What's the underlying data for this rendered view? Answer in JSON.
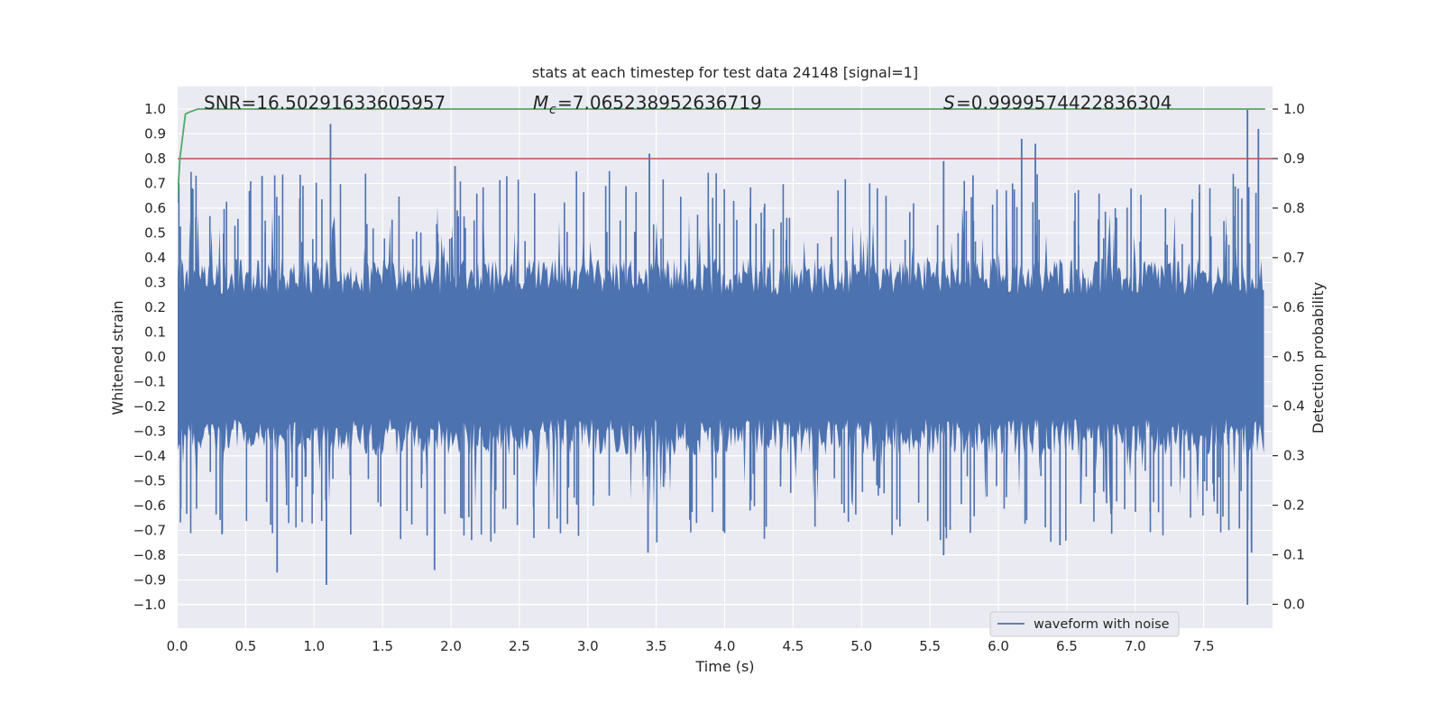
{
  "chart_data": {
    "type": "line",
    "title": "stats at each timestep for test data 24148 [signal=1]",
    "xlabel": "Time (s)",
    "ylabel_left": "Whitened strain",
    "ylabel_right": "Detection probability",
    "xlim": [
      0,
      8
    ],
    "ylim_left": [
      -1.1,
      1.1
    ],
    "ylim_right": [
      -0.05,
      1.05
    ],
    "x_ticks": [
      0.0,
      0.5,
      1.0,
      1.5,
      2.0,
      2.5,
      3.0,
      3.5,
      4.0,
      4.5,
      5.0,
      5.5,
      6.0,
      6.5,
      7.0,
      7.5
    ],
    "x_tick_labels": [
      "0.0",
      "0.5",
      "1.0",
      "1.5",
      "2.0",
      "2.5",
      "3.0",
      "3.5",
      "4.0",
      "4.5",
      "5.0",
      "5.5",
      "6.0",
      "6.5",
      "7.0",
      "7.5"
    ],
    "y_ticks_left": [
      1.0,
      0.9,
      0.8,
      0.7,
      0.6,
      0.5,
      0.4,
      0.3,
      0.2,
      0.1,
      0.0,
      -0.1,
      -0.2,
      -0.3,
      -0.4,
      -0.5,
      -0.6,
      -0.7,
      -0.8,
      -0.9,
      -1.0
    ],
    "y_tick_labels_left": [
      "1.0",
      "0.9",
      "0.8",
      "0.7",
      "0.6",
      "0.5",
      "0.4",
      "0.3",
      "0.2",
      "0.1",
      "0.0",
      "−0.1",
      "−0.2",
      "−0.3",
      "−0.4",
      "−0.5",
      "−0.6",
      "−0.7",
      "−0.8",
      "−0.9",
      "−1.0"
    ],
    "y_ticks_right": [
      1.0,
      0.9,
      0.8,
      0.7,
      0.6,
      0.5,
      0.4,
      0.3,
      0.2,
      0.1,
      0.0
    ],
    "y_tick_labels_right": [
      "1.0",
      "0.9",
      "0.8",
      "0.7",
      "0.6",
      "0.5",
      "0.4",
      "0.3",
      "0.2",
      "0.1",
      "0.0"
    ],
    "grid": true,
    "annotations": {
      "snr": "SNR=16.50291633605957",
      "mc_value": "=7.065238952636719",
      "s_value": "=0.9999574422836304"
    },
    "threshold_right": 0.9,
    "series": [
      {
        "name": "waveform with noise",
        "axis": "left",
        "color": "#4c72b0",
        "description": "dense noisy strain, about ±0.4 envelope with spikes",
        "duration": 7.95,
        "peaks_pos": [
          [
            1.12,
            0.94
          ],
          [
            3.45,
            0.82
          ],
          [
            6.17,
            0.88
          ],
          [
            6.27,
            0.86
          ],
          [
            7.82,
            1.0
          ],
          [
            7.9,
            0.92
          ],
          [
            0.62,
            0.73
          ],
          [
            2.03,
            0.77
          ],
          [
            5.6,
            0.79
          ]
        ],
        "peaks_neg": [
          [
            0.73,
            -0.87
          ],
          [
            1.09,
            -0.92
          ],
          [
            1.88,
            -0.86
          ],
          [
            3.44,
            -0.79
          ],
          [
            5.6,
            -0.8
          ],
          [
            6.45,
            -0.76
          ],
          [
            7.82,
            -1.0
          ],
          [
            7.85,
            -0.79
          ]
        ]
      },
      {
        "name": "detection probability",
        "axis": "right",
        "color": "#55a868",
        "x": [
          0.0,
          0.02,
          0.06,
          0.1,
          0.15,
          7.95
        ],
        "y": [
          0.81,
          0.9,
          0.99,
          0.995,
          1.0,
          1.0
        ]
      },
      {
        "name": "threshold",
        "axis": "right",
        "color": "#c44e52"
      }
    ],
    "legend": {
      "location": "lower-center-right",
      "entries": [
        "waveform with noise"
      ]
    }
  }
}
